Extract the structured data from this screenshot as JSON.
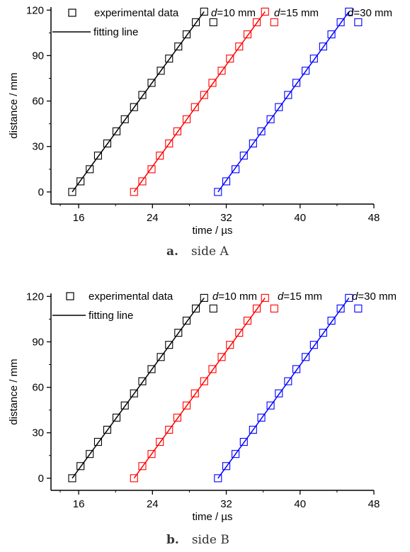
{
  "chart_data": [
    {
      "type": "scatter",
      "xlabel": "time / µs",
      "ylabel": "distance / mm",
      "xlim": [
        13,
        48
      ],
      "ylim": [
        -8,
        122
      ],
      "xticks": [
        "16",
        "24",
        "32",
        "40",
        "48"
      ],
      "yticks": [
        "0",
        "30",
        "60",
        "90",
        "120"
      ],
      "legend": {
        "marker_label": "experimental data",
        "line_label": "fitting line",
        "placement": "top-left"
      },
      "series": [
        {
          "name": "d=10 mm",
          "label_prefix": "d",
          "label_rest": "=10 mm",
          "color": "#000000",
          "x": [
            15.3,
            16.2,
            17.2,
            18.1,
            19.1,
            20.1,
            21.0,
            22.0,
            22.9,
            23.9,
            24.9,
            25.8,
            26.8,
            27.7,
            28.7,
            29.6,
            30.6
          ],
          "y": [
            0,
            7,
            15,
            24,
            32,
            40,
            48,
            56,
            64,
            72,
            80,
            88,
            96,
            104,
            112,
            119,
            112
          ]
        },
        {
          "name": "d=15 mm",
          "label_prefix": "d",
          "label_rest": "=15 mm",
          "color": "#ff0000",
          "x": [
            22.0,
            22.9,
            23.9,
            24.8,
            25.8,
            26.7,
            27.7,
            28.6,
            29.6,
            30.5,
            31.5,
            32.4,
            33.4,
            34.3,
            35.3,
            36.2,
            37.2
          ],
          "y": [
            0,
            7,
            15,
            24,
            32,
            40,
            48,
            56,
            64,
            72,
            80,
            88,
            96,
            104,
            112,
            119,
            112
          ]
        },
        {
          "name": "d=30 mm",
          "label_prefix": "d",
          "label_rest": "=30 mm",
          "color": "#0000ff",
          "x": [
            31.1,
            32.0,
            33.0,
            33.9,
            34.9,
            35.8,
            36.8,
            37.7,
            38.7,
            39.6,
            40.6,
            41.5,
            42.5,
            43.4,
            44.4,
            45.3,
            46.3
          ],
          "y": [
            0,
            7,
            15,
            24,
            32,
            40,
            48,
            56,
            64,
            72,
            80,
            88,
            96,
            104,
            112,
            119,
            112
          ]
        }
      ],
      "caption_letter": "a.",
      "caption_text": "side A"
    },
    {
      "type": "scatter",
      "xlabel": "time / µs",
      "ylabel": "distance / mm",
      "xlim": [
        13,
        48
      ],
      "ylim": [
        -8,
        122
      ],
      "xticks": [
        "16",
        "24",
        "32",
        "40",
        "48"
      ],
      "yticks": [
        "0",
        "30",
        "60",
        "90",
        "120"
      ],
      "legend": {
        "marker_label": "experimental data",
        "line_label": "fitting line",
        "placement": "top-left"
      },
      "series": [
        {
          "name": "d=10 mm",
          "label_prefix": "d",
          "label_rest": "=10 mm",
          "color": "#000000",
          "x": [
            15.3,
            16.2,
            17.2,
            18.1,
            19.1,
            20.1,
            21.0,
            22.0,
            22.9,
            23.9,
            24.9,
            25.8,
            26.8,
            27.7,
            28.7,
            29.6,
            30.6
          ],
          "y": [
            0,
            8,
            16,
            24,
            32,
            40,
            48,
            56,
            64,
            72,
            80,
            88,
            96,
            104,
            112,
            119,
            112
          ]
        },
        {
          "name": "d=15 mm",
          "label_prefix": "d",
          "label_rest": "=15 mm",
          "color": "#ff0000",
          "x": [
            22.0,
            22.9,
            23.9,
            24.8,
            25.8,
            26.7,
            27.7,
            28.6,
            29.6,
            30.5,
            31.5,
            32.4,
            33.4,
            34.3,
            35.3,
            36.2,
            37.2
          ],
          "y": [
            0,
            8,
            16,
            24,
            32,
            40,
            48,
            56,
            64,
            72,
            80,
            88,
            96,
            104,
            112,
            119,
            112
          ]
        },
        {
          "name": "d=30 mm",
          "label_prefix": "d",
          "label_rest": "=30 mm",
          "color": "#0000ff",
          "x": [
            31.1,
            32.0,
            33.0,
            33.9,
            34.9,
            35.8,
            36.8,
            37.7,
            38.7,
            39.6,
            40.6,
            41.5,
            42.5,
            43.4,
            44.4,
            45.3,
            46.3
          ],
          "y": [
            0,
            8,
            16,
            24,
            32,
            40,
            48,
            56,
            64,
            72,
            80,
            88,
            96,
            104,
            112,
            119,
            112
          ]
        }
      ],
      "caption_letter": "b.",
      "caption_text": "side B"
    }
  ]
}
